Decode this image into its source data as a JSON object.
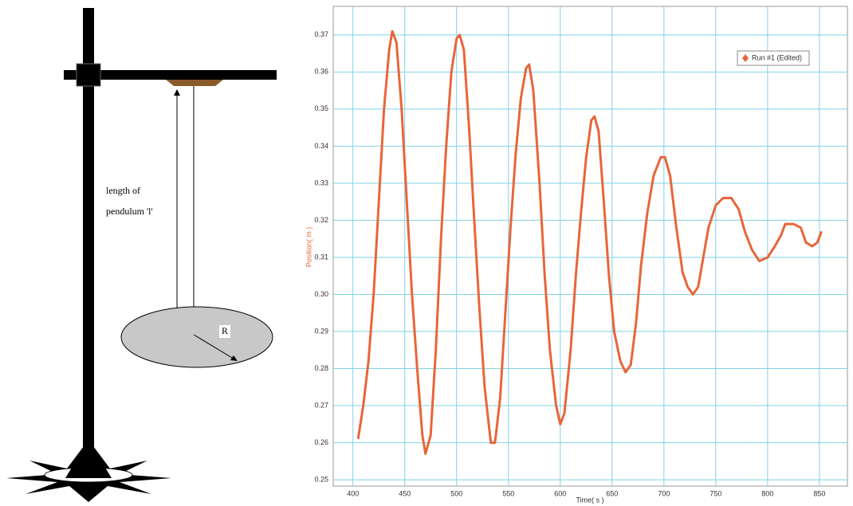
{
  "diagram": {
    "labels": [
      "length of",
      "pendulum 'l'",
      "R"
    ]
  },
  "chart_data": {
    "type": "line",
    "x_label": "Time( s )",
    "y_label": "Position( m )",
    "xlim": [
      381,
      877
    ],
    "ylim": [
      0.2483,
      0.3777
    ],
    "xticks": [
      400,
      450,
      500,
      550,
      600,
      650,
      700,
      750,
      800,
      850
    ],
    "yticks": [
      0.25,
      0.26,
      0.27,
      0.28,
      0.29,
      {
        "value": 0.3,
        "label": "0.30"
      },
      0.31,
      0.32,
      0.33,
      0.34,
      0.35,
      0.36,
      0.37
    ],
    "grid": true,
    "legend": "upper right",
    "series": [
      {
        "name": "Run #1 (Edited)",
        "color": "#e8653a",
        "x": [
          405,
          410,
          415,
          420,
          425,
          430,
          435,
          438,
          442,
          447,
          452,
          457,
          462,
          467,
          470,
          475,
          480,
          485,
          490,
          495,
          500,
          503,
          507,
          512,
          517,
          522,
          527,
          533,
          537,
          542,
          547,
          552,
          557,
          562,
          567,
          570,
          574,
          580,
          585,
          590,
          596,
          600,
          604,
          610,
          615,
          620,
          625,
          630,
          633,
          637,
          642,
          647,
          652,
          658,
          663,
          668,
          673,
          678,
          684,
          690,
          697,
          701,
          706,
          712,
          718,
          723,
          728,
          733,
          738,
          743,
          750,
          757,
          765,
          772,
          778,
          785,
          792,
          800,
          807,
          813,
          817,
          825,
          832,
          837,
          843,
          848,
          852
        ],
        "values": [
          0.261,
          0.27,
          0.282,
          0.3,
          0.325,
          0.35,
          0.366,
          0.371,
          0.368,
          0.35,
          0.325,
          0.3,
          0.28,
          0.262,
          0.257,
          0.262,
          0.285,
          0.315,
          0.34,
          0.36,
          0.369,
          0.37,
          0.366,
          0.345,
          0.32,
          0.296,
          0.275,
          0.26,
          0.26,
          0.272,
          0.295,
          0.318,
          0.338,
          0.353,
          0.361,
          0.362,
          0.355,
          0.33,
          0.305,
          0.285,
          0.27,
          0.265,
          0.268,
          0.285,
          0.305,
          0.322,
          0.337,
          0.347,
          0.348,
          0.344,
          0.325,
          0.305,
          0.29,
          0.282,
          0.279,
          0.281,
          0.292,
          0.308,
          0.322,
          0.332,
          0.337,
          0.337,
          0.332,
          0.318,
          0.306,
          0.302,
          0.3,
          0.302,
          0.31,
          0.318,
          0.324,
          0.326,
          0.326,
          0.323,
          0.317,
          0.312,
          0.309,
          0.31,
          0.313,
          0.316,
          0.319,
          0.319,
          0.318,
          0.314,
          0.313,
          0.314,
          0.317
        ]
      }
    ]
  }
}
